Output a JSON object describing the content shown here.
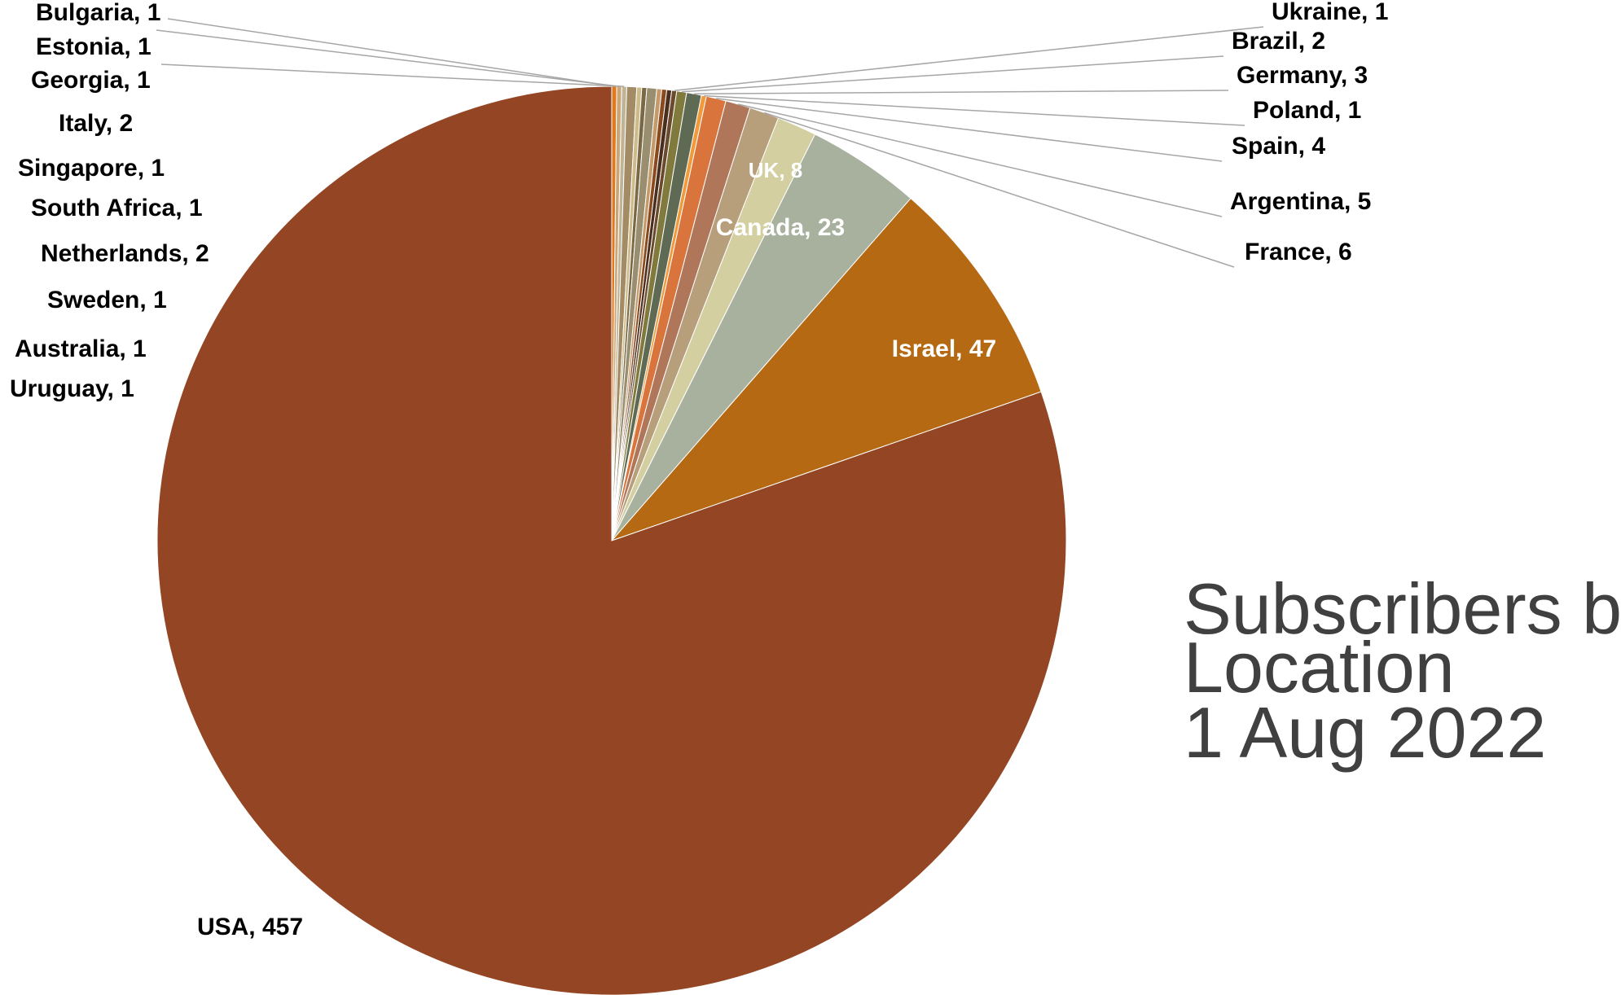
{
  "chart_data": {
    "type": "pie",
    "title_lines": [
      "Subscribers by",
      "Location",
      "1 Aug 2022"
    ],
    "slices": [
      {
        "label": "USA, 457",
        "name": "USA",
        "value": 457,
        "color": "#944523"
      },
      {
        "label": "Israel, 47",
        "name": "Israel",
        "value": 47,
        "color": "#B56912"
      },
      {
        "label": "Canada, 23",
        "name": "Canada",
        "value": 23,
        "color": "#A8B09E"
      },
      {
        "label": "UK, 8",
        "name": "UK",
        "value": 8,
        "color": "#D3CFA1"
      },
      {
        "label": "France, 6",
        "name": "France",
        "value": 6,
        "color": "#B89F7C"
      },
      {
        "label": "Argentina, 5",
        "name": "Argentina",
        "value": 5,
        "color": "#B0765A"
      },
      {
        "label": "Spain, 4",
        "name": "Spain",
        "value": 4,
        "color": "#D9743C"
      },
      {
        "label": "Poland, 1",
        "name": "Poland",
        "value": 1,
        "color": "#F09A3A"
      },
      {
        "label": "Germany, 3",
        "name": "Germany",
        "value": 3,
        "color": "#5F6A55"
      },
      {
        "label": "Brazil, 2",
        "name": "Brazil",
        "value": 2,
        "color": "#807A3C"
      },
      {
        "label": "Ukraine, 1",
        "name": "Ukraine",
        "value": 1,
        "color": "#6B4A2E"
      },
      {
        "label": "Uruguay, 1",
        "name": "Uruguay",
        "value": 1,
        "color": "#4A2F1F"
      },
      {
        "label": "Australia, 1",
        "name": "Australia",
        "value": 1,
        "color": "#8A4A1E"
      },
      {
        "label": "Sweden, 1",
        "name": "Sweden",
        "value": 1,
        "color": "#C59A6A"
      },
      {
        "label": "Netherlands, 2",
        "name": "Netherlands",
        "value": 2,
        "color": "#9A8E70"
      },
      {
        "label": "South Africa, 1",
        "name": "South Africa",
        "value": 1,
        "color": "#7B6844"
      },
      {
        "label": "Singapore, 1",
        "name": "Singapore",
        "value": 1,
        "color": "#CDBB8A"
      },
      {
        "label": "Italy, 2",
        "name": "Italy",
        "value": 2,
        "color": "#A38B66"
      },
      {
        "label": "Georgia, 1",
        "name": "Georgia",
        "value": 1,
        "color": "#BFB596"
      },
      {
        "label": "Estonia, 1",
        "name": "Estonia",
        "value": 1,
        "color": "#C9A57A"
      },
      {
        "label": "Bulgaria, 1",
        "name": "Bulgaria",
        "value": 1,
        "color": "#E07A1F"
      }
    ]
  }
}
